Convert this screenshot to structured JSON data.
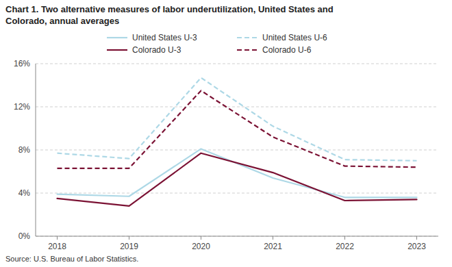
{
  "chart_data": {
    "type": "line",
    "title": "Chart 1. Two alternative measures of labor underutilization, United States and\nColorado, annual averages",
    "source": "Source: U.S. Bureau of Labor Statistics.",
    "x": [
      2018,
      2019,
      2020,
      2021,
      2022,
      2023
    ],
    "xlim": [
      2017.7,
      2023.3
    ],
    "xticks": [
      2018,
      2019,
      2020,
      2021,
      2022,
      2023
    ],
    "ylim": [
      0,
      16
    ],
    "yticks": [
      {
        "value": 0,
        "label": "0%"
      },
      {
        "value": 4,
        "label": "4%"
      },
      {
        "value": 8,
        "label": "8%"
      },
      {
        "value": 12,
        "label": "12%"
      },
      {
        "value": 16,
        "label": "16%"
      }
    ],
    "grid": true,
    "legend": "top",
    "series": [
      {
        "name": "United States U-3",
        "color": "#add8e6",
        "line_style": "solid",
        "values": [
          3.9,
          3.7,
          8.1,
          5.4,
          3.6,
          3.6
        ]
      },
      {
        "name": "United States U-6",
        "color": "#add8e6",
        "line_style": "dashed",
        "values": [
          7.7,
          7.2,
          14.7,
          10.2,
          7.1,
          7.0
        ]
      },
      {
        "name": "Colorado U-3",
        "color": "#7b1234",
        "line_style": "solid",
        "values": [
          3.5,
          2.8,
          7.7,
          5.9,
          3.3,
          3.4
        ]
      },
      {
        "name": "Colorado U-6",
        "color": "#7b1234",
        "line_style": "dashed",
        "values": [
          6.3,
          6.3,
          13.5,
          9.2,
          6.5,
          6.4
        ]
      }
    ]
  }
}
